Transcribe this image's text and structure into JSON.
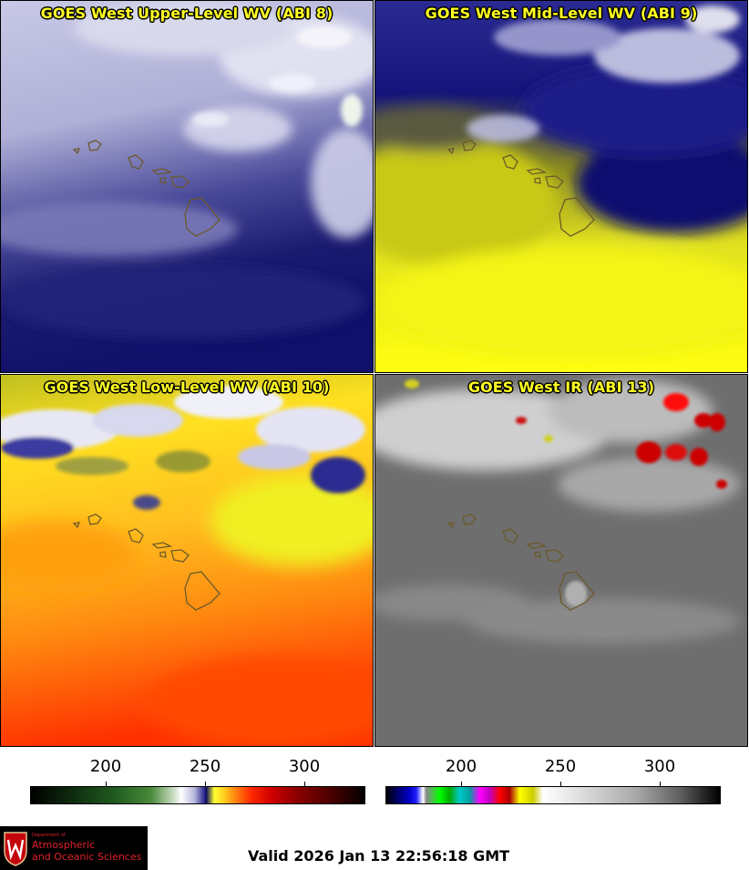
{
  "panels": [
    {
      "title": "GOES West Upper-Level WV (ABI 8)"
    },
    {
      "title": "GOES West Mid-Level WV (ABI 9)"
    },
    {
      "title": "GOES West Low-Level WV (ABI 10)"
    },
    {
      "title": "GOES West IR (ABI 13)"
    }
  ],
  "colorbars": [
    {
      "ticks": [
        "200",
        "250",
        "300"
      ]
    },
    {
      "ticks": [
        "200",
        "250",
        "300"
      ]
    }
  ],
  "logo": {
    "line1": "Department of",
    "line2": "Atmospheric",
    "line3": "and Oceanic Sciences",
    "brand_color": "#e0202a"
  },
  "valid_time": "Valid 2026 Jan 13 22:56:18 GMT",
  "colors": {
    "title_text": "#ffff22",
    "coastline": "#6b5a2a"
  }
}
